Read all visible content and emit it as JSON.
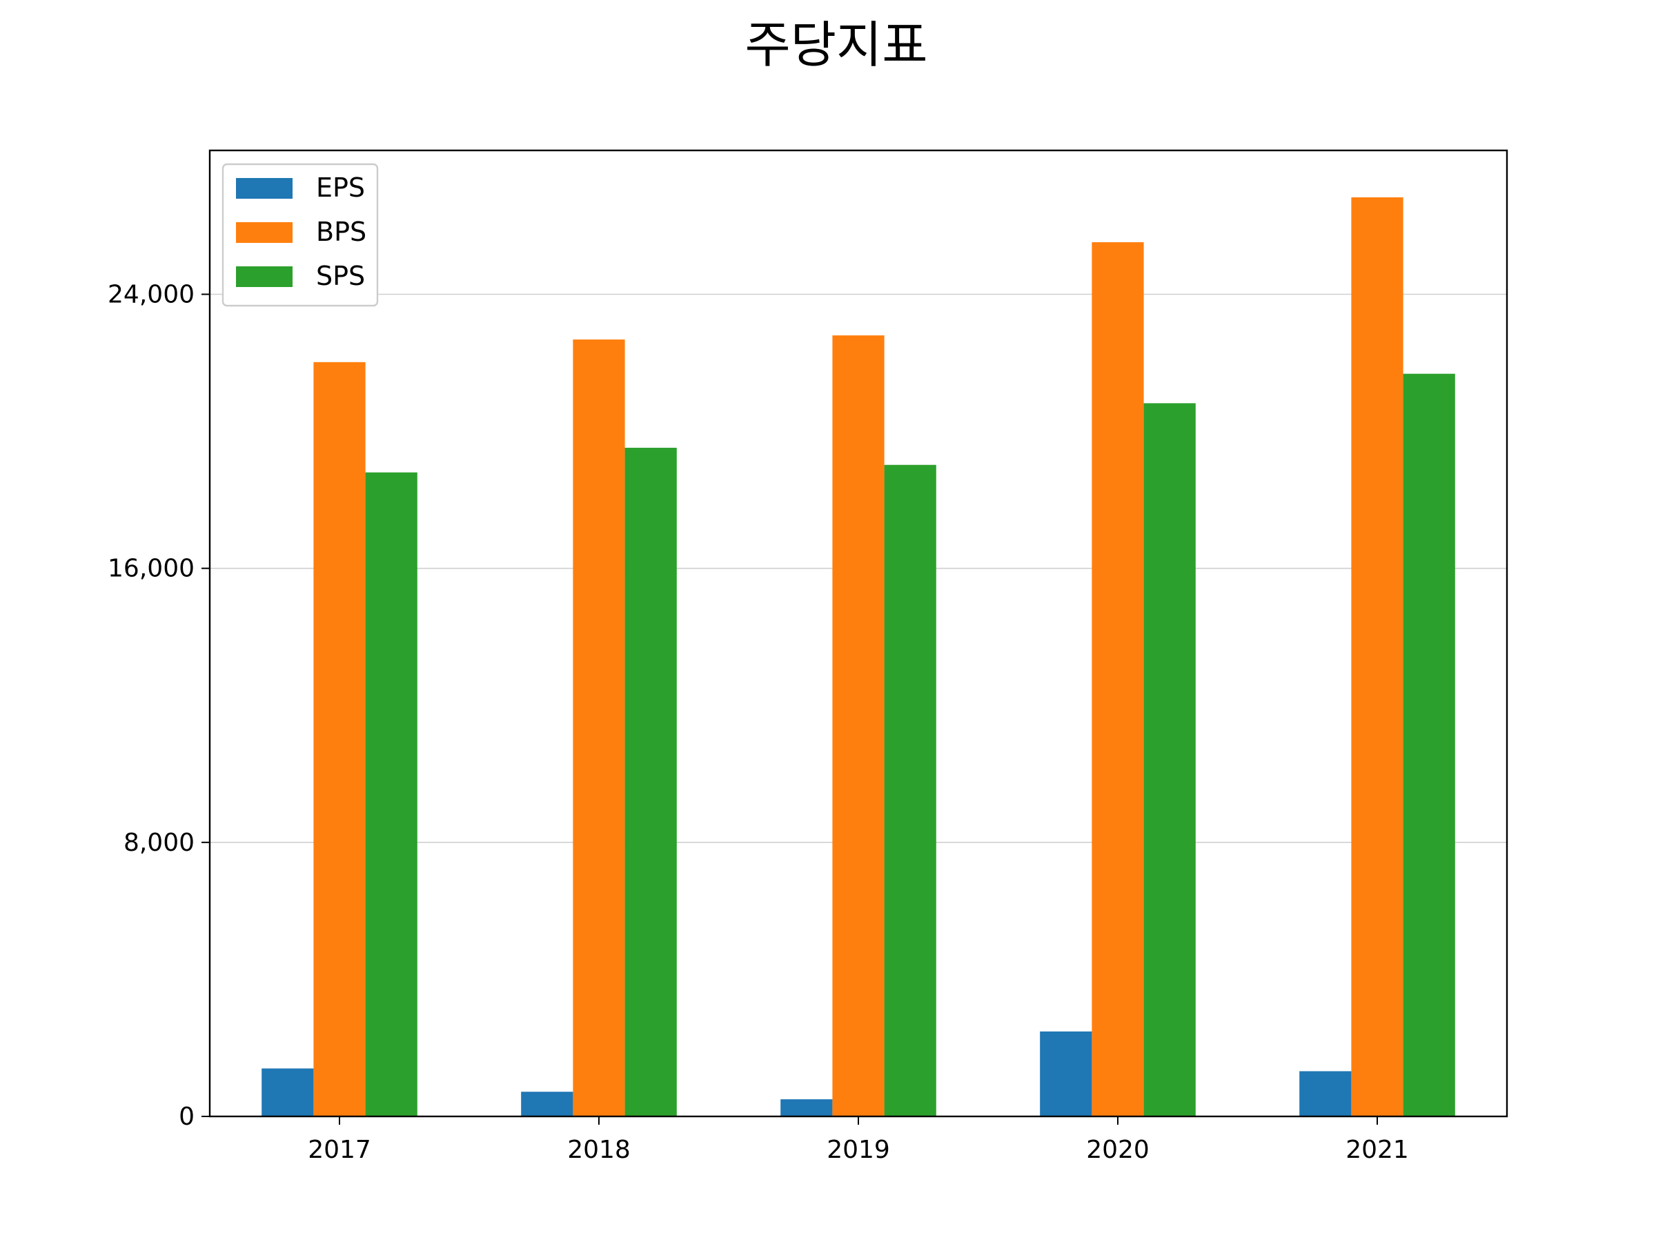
{
  "chart_data": {
    "type": "bar",
    "title": "주당지표",
    "xlabel": "",
    "ylabel": "",
    "categories": [
      "2017",
      "2018",
      "2019",
      "2020",
      "2021"
    ],
    "series": [
      {
        "name": "EPS",
        "color": "#1f77b4",
        "values": [
          1400,
          720,
          500,
          2480,
          1320
        ]
      },
      {
        "name": "BPS",
        "color": "#ff7f0e",
        "values": [
          22020,
          22680,
          22800,
          25520,
          26830
        ]
      },
      {
        "name": "SPS",
        "color": "#2ca02c",
        "values": [
          18800,
          19520,
          19020,
          20820,
          21680
        ]
      }
    ],
    "ylim": [
      0,
      28200
    ],
    "yticks": [
      0,
      8000,
      16000,
      24000
    ],
    "ytick_labels": [
      "0",
      "8,000",
      "16,000",
      "24,000"
    ],
    "grid": "horizontal",
    "legend_position": "upper-left"
  }
}
